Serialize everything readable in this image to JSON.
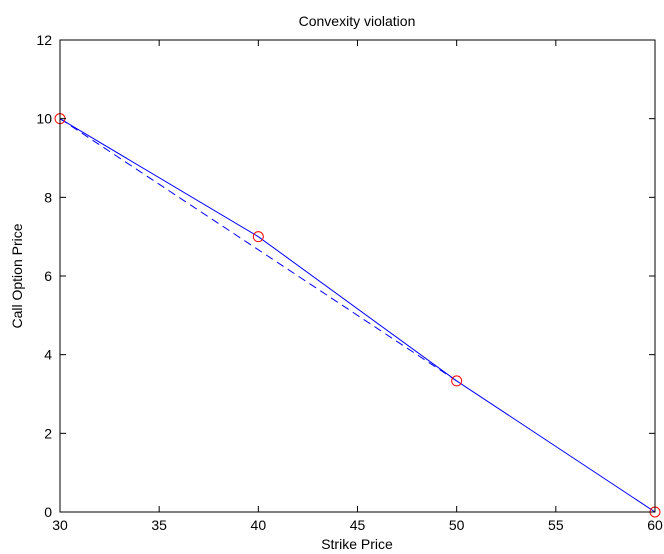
{
  "chart_data": {
    "type": "line",
    "title": "Convexity violation",
    "xlabel": "Strike Price",
    "ylabel": "Call Option Price",
    "xlim": [
      30,
      60
    ],
    "ylim": [
      0,
      12
    ],
    "xticks": [
      30,
      35,
      40,
      45,
      50,
      55,
      60
    ],
    "yticks": [
      0,
      2,
      4,
      6,
      8,
      10,
      12
    ],
    "grid": false,
    "series": [
      {
        "style": "solid",
        "color": "#0000ff",
        "x": [
          30,
          40,
          50,
          60
        ],
        "y": [
          10,
          7,
          3.333,
          0
        ]
      },
      {
        "style": "dashed",
        "color": "#0000ff",
        "x": [
          30,
          50
        ],
        "y": [
          10,
          3.333
        ]
      },
      {
        "style": "markers",
        "marker": "circle",
        "color": "#ff0000",
        "x": [
          30,
          40,
          50,
          60
        ],
        "y": [
          10,
          7,
          3.333,
          0
        ]
      }
    ]
  }
}
